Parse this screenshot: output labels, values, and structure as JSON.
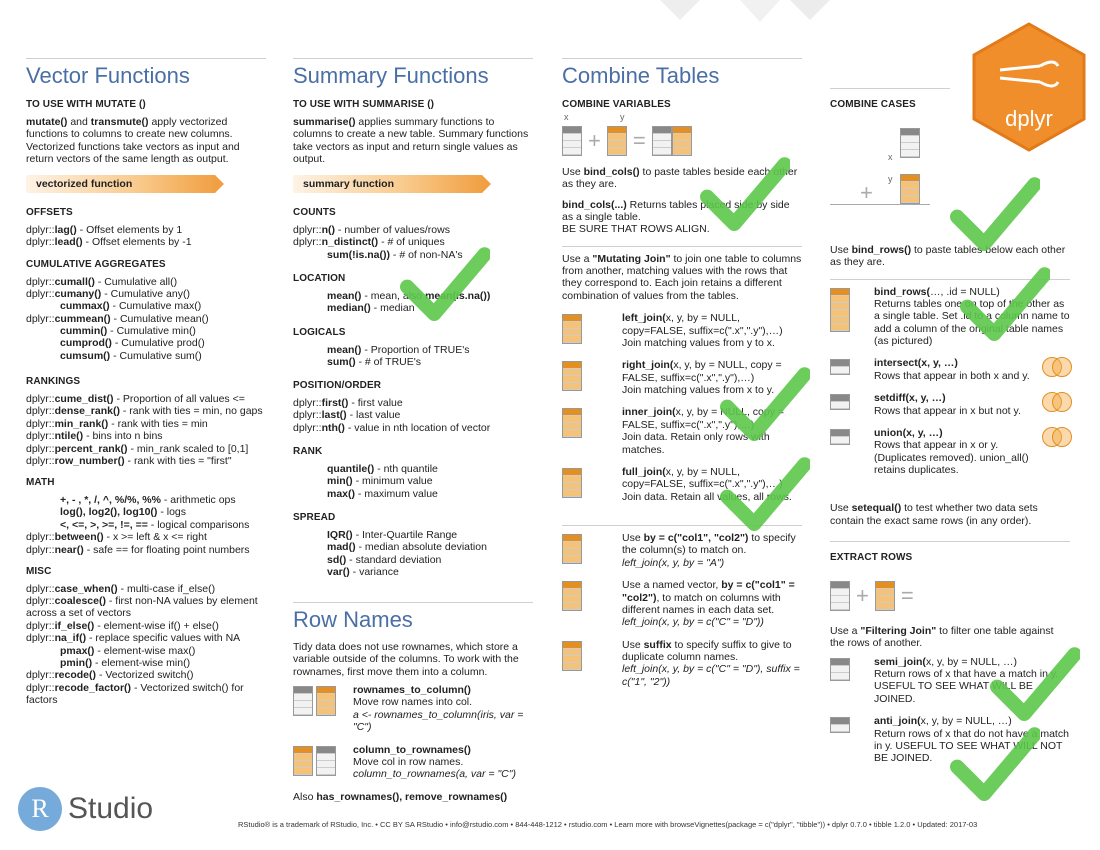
{
  "vector": {
    "title": "Vector Functions",
    "subtitle": "TO USE WITH MUTATE ()",
    "intro_b1": "mutate()",
    "intro_t1": " and ",
    "intro_b2": "transmute()",
    "intro_t2": " apply vectorized functions to columns to create new columns. Vectorized functions take vectors as input and return vectors of the same length as output.",
    "bar": "vectorized function",
    "offsets": {
      "heading": "OFFSETS",
      "lines": [
        {
          "p": "dplyr::",
          "b": "lag()",
          "t": " - Offset elements by 1"
        },
        {
          "p": "dplyr::",
          "b": "lead()",
          "t": " - Offset elements by -1"
        }
      ]
    },
    "cumulative": {
      "heading": "CUMULATIVE AGGREGATES",
      "lines": [
        {
          "p": "dplyr::",
          "b": "cumall()",
          "t": " - Cumulative all()",
          "ind": false
        },
        {
          "p": "dplyr::",
          "b": "cumany()",
          "t": " - Cumulative any()",
          "ind": false
        },
        {
          "p": "",
          "b": "cummax()",
          "t": " - Cumulative max()",
          "ind": true
        },
        {
          "p": "dplyr::",
          "b": "cummean()",
          "t": " - Cumulative mean()",
          "ind": false
        },
        {
          "p": "",
          "b": "cummin()",
          "t": " - Cumulative min()",
          "ind": true
        },
        {
          "p": "",
          "b": "cumprod()",
          "t": " - Cumulative prod()",
          "ind": true
        },
        {
          "p": "",
          "b": "cumsum()",
          "t": " - Cumulative sum()",
          "ind": true
        }
      ]
    },
    "rankings": {
      "heading": "RANKINGS",
      "lines": [
        {
          "p": "dplyr::",
          "b": "cume_dist()",
          "t": " - Proportion of all values <="
        },
        {
          "p": "dplyr::",
          "b": "dense_rank()",
          "t": " - rank with ties = min, no gaps"
        },
        {
          "p": "dplyr::",
          "b": "min_rank()",
          "t": " - rank with ties = min"
        },
        {
          "p": "dplyr::",
          "b": "ntile()",
          "t": " - bins into n bins"
        },
        {
          "p": "dplyr::",
          "b": "percent_rank()",
          "t": " - min_rank scaled to [0,1]"
        },
        {
          "p": "dplyr::",
          "b": "row_number()",
          "t": " - rank with ties = \"first\""
        }
      ]
    },
    "math": {
      "heading": "MATH",
      "lines": [
        {
          "p": "",
          "b": "+, - , *, /, ^, %/%, %%",
          "t": " - arithmetic ops",
          "ind": true
        },
        {
          "p": "",
          "b": "log(), log2(), log10()",
          "t": " - logs",
          "ind": true
        },
        {
          "p": "",
          "b": "<, <=, >, >=, !=, ==",
          "t": " - logical comparisons",
          "ind": true
        },
        {
          "p": "dplyr::",
          "b": "between()",
          "t": " - x >= left & x <= right",
          "ind": false
        },
        {
          "p": "dplyr::",
          "b": "near()",
          "t": " - safe == for floating point numbers",
          "ind": false
        }
      ]
    },
    "misc": {
      "heading": "MISC",
      "lines": [
        {
          "p": "dplyr::",
          "b": "case_when()",
          "t": " - multi-case if_else()",
          "ind": false
        },
        {
          "p": "dplyr::",
          "b": "coalesce()",
          "t": " - first non-NA values by element  across a set of vectors",
          "ind": false
        },
        {
          "p": "dplyr::",
          "b": "if_else()",
          "t": " - element-wise if() + else()",
          "ind": false
        },
        {
          "p": "dplyr::",
          "b": "na_if()",
          "t": " - replace specific values with NA",
          "ind": false
        },
        {
          "p": "",
          "b": "pmax()",
          "t": " - element-wise max()",
          "ind": true
        },
        {
          "p": "",
          "b": "pmin()",
          "t": " - element-wise min()",
          "ind": true
        },
        {
          "p": "dplyr::",
          "b": "recode()",
          "t": " - Vectorized switch()",
          "ind": false
        },
        {
          "p": "dplyr::",
          "b": "recode_factor()",
          "t": " - Vectorized switch() for factors",
          "ind": false
        }
      ]
    }
  },
  "summary": {
    "title": "Summary Functions",
    "subtitle": "TO USE WITH SUMMARISE ()",
    "intro_b": "summarise()",
    "intro_t": " applies summary functions to columns to create a new table. Summary functions take vectors as input and return single values as output.",
    "bar": "summary function",
    "counts": {
      "heading": "COUNTS",
      "lines": [
        {
          "p": "dplyr::",
          "b": "n()",
          "t": " - number of values/rows",
          "ind": false
        },
        {
          "p": "dplyr::",
          "b": "n_distinct()",
          "t": " - # of uniques",
          "ind": false
        },
        {
          "p": "",
          "b": "sum(!is.na())",
          "t": " - # of non-NA's",
          "ind": true
        }
      ]
    },
    "location": {
      "heading": "LOCATION",
      "lines": [
        {
          "p": "",
          "b": "mean()",
          "t": " - mean, also ",
          "b2": "mean(is.na())",
          "ind": true
        },
        {
          "p": "",
          "b": "median()",
          "t": " - median",
          "ind": true
        }
      ]
    },
    "logicals": {
      "heading": "LOGICALS",
      "lines": [
        {
          "p": "",
          "b": "mean()",
          "t": " - Proportion of TRUE's",
          "ind": true
        },
        {
          "p": "",
          "b": "sum()",
          "t": " - # of TRUE's",
          "ind": true
        }
      ]
    },
    "position": {
      "heading": "POSITION/ORDER",
      "lines": [
        {
          "p": "dplyr::",
          "b": "first()",
          "t": " - first value",
          "ind": false
        },
        {
          "p": "dplyr::",
          "b": "last()",
          "t": " - last value",
          "ind": false
        },
        {
          "p": "dplyr::",
          "b": "nth()",
          "t": " - value in nth location of vector",
          "ind": false
        }
      ]
    },
    "rank": {
      "heading": "RANK",
      "lines": [
        {
          "p": "",
          "b": "quantile()",
          "t": " - nth quantile",
          "ind": true
        },
        {
          "p": "",
          "b": "min()",
          "t": " - minimum value",
          "ind": true
        },
        {
          "p": "",
          "b": "max()",
          "t": " - maximum value",
          "ind": true
        }
      ]
    },
    "spread": {
      "heading": "SPREAD",
      "lines": [
        {
          "p": "",
          "b": "IQR()",
          "t": " - Inter-Quartile Range",
          "ind": true
        },
        {
          "p": "",
          "b": "mad()",
          "t": " - median absolute deviation",
          "ind": true
        },
        {
          "p": "",
          "b": "sd()",
          "t": " - standard deviation",
          "ind": true
        },
        {
          "p": "",
          "b": "var()",
          "t": " - variance",
          "ind": true
        }
      ]
    }
  },
  "rownames": {
    "title": "Row Names",
    "intro": "Tidy data does not use rownames, which store a variable outside of the columns. To work with the rownames, first move them into a column.",
    "f1_name": "rownames_to_column()",
    "f1_desc": "Move row names into col.",
    "f1_code": "a <- rownames_to_column(iris, var = \"C\")",
    "f2_name": "column_to_rownames()",
    "f2_desc": "Move col in row names.",
    "f2_code": "column_to_rownames(a, var = \"C\")",
    "also_pre": "Also ",
    "also_b": "has_rownames(), remove_rownames()"
  },
  "combine": {
    "title": "Combine Tables",
    "vars_heading": "COMBINE VARIABLES",
    "cases_heading": "COMBINE CASES",
    "label_x": "x",
    "label_y": "y",
    "bind_cols_pre": "Use ",
    "bind_cols_b": "bind_cols()",
    "bind_cols_t": " to paste tables beside each other as they are.",
    "bind_cols_sig_b": "bind_cols(...)",
    "bind_cols_sig_t": " Returns tables placed side by side as a single table.",
    "bind_cols_warn": "BE SURE THAT ROWS ALIGN.",
    "mutating_pre": "Use a ",
    "mutating_b": "\"Mutating Join\"",
    "mutating_t": " to join one table to columns from another, matching values with the rows that they correspond to.  Each join retains a different combination of values from the tables.",
    "joins": [
      {
        "name": "left_join(",
        "args": "x, y, by = NULL, copy=FALSE,  suffix=c(\".x\",\".y\"),…)",
        "desc": "Join matching values from y to x."
      },
      {
        "name": "right_join(",
        "args": "x, y, by = NULL, copy = FALSE,  suffix=c(\".x\",\".y\"),…)",
        "desc": "Join matching values from x to y."
      },
      {
        "name": "inner_join(",
        "args": "x, y, by = NULL, copy = FALSE,  suffix=c(\".x\",\".y\"),…)",
        "desc": "Join data. Retain only rows with matches."
      },
      {
        "name": "full_join(",
        "args": "x, y, by = NULL, copy=FALSE,  suffix=c(\".x\",\".y\"),…)",
        "desc": "Join data. Retain all values, all rows."
      }
    ],
    "by1_pre": "Use ",
    "by1_b": "by = c(\"col1\", \"col2\")",
    "by1_t": "  to specify the column(s) to match on.",
    "by1_code": "left_join(x, y, by = \"A\")",
    "by2_pre": "Use a named vector,  ",
    "by2_b": "by = c(\"col1\" = \"col2\")",
    "by2_t": ", to match on columns with different names in each data set.",
    "by2_code": "left_join(x, y, by = c(\"C\" = \"D\"))",
    "by3_pre": "Use ",
    "by3_b": "suffix",
    "by3_t": " to specify suffix to give to duplicate column names.",
    "by3_code": "left_join(x, y, by = c(\"C\" = \"D\"), suffix = c(\"1\", \"2\"))",
    "bind_rows_pre": "Use ",
    "bind_rows_b": "bind_rows()",
    "bind_rows_t": " to paste tables below each other as they are.",
    "bind_rows_sig_b": "bind_rows(",
    "bind_rows_sig_t": "…, .id = NULL)",
    "bind_rows_desc": "Returns tables one on top of the other as a single table. Set .id to a column name to add a column of the original table names (as pictured)",
    "setops": [
      {
        "name": "intersect(x, y, …)",
        "desc": "Rows that appear in both x and y."
      },
      {
        "name": "setdiff(x, y, …)",
        "desc": "Rows that appear in x but not y."
      },
      {
        "name": "union(x, y, …)",
        "desc": "Rows that appear in x or y. (Duplicates removed). union_all() retains duplicates."
      }
    ],
    "setequal_pre": "Use ",
    "setequal_b": "setequal()",
    "setequal_t": " to test whether two data sets contain the exact same rows (in any order).",
    "extract_heading": "EXTRACT ROWS",
    "filtering_pre": "Use a ",
    "filtering_b": "\"Filtering Join\"",
    "filtering_t": " to filter one table against the rows of another.",
    "semi_b": "semi_join(",
    "semi_t": "x, y, by = NULL, …)",
    "semi_desc": "Return rows of x that have a match in y. USEFUL TO SEE WHAT WILL BE JOINED.",
    "anti_b": "anti_join(",
    "anti_t": "x, y, by = NULL, …)",
    "anti_desc": "Return rows of x that do not have a match in y. USEFUL TO SEE WHAT WILL NOT BE JOINED."
  },
  "brand": {
    "hex_label": "dplyr",
    "logo_letter": "R",
    "logo_text": "Studio",
    "footer": "RStudio® is a trademark of RStudio, Inc.  •  CC BY SA  RStudio •  info@rstudio.com  •  844-448-1212 • rstudio.com  •  Learn more with browseVignettes(package = c(\"dplyr\", \"tibble\"))  •  dplyr  0.7.0 •  tibble  1.2.0  •  Updated: 2017-03",
    "hex_color": "#f08e2b",
    "title_color": "#4a6fa5",
    "check_color": "#5cc84b"
  }
}
